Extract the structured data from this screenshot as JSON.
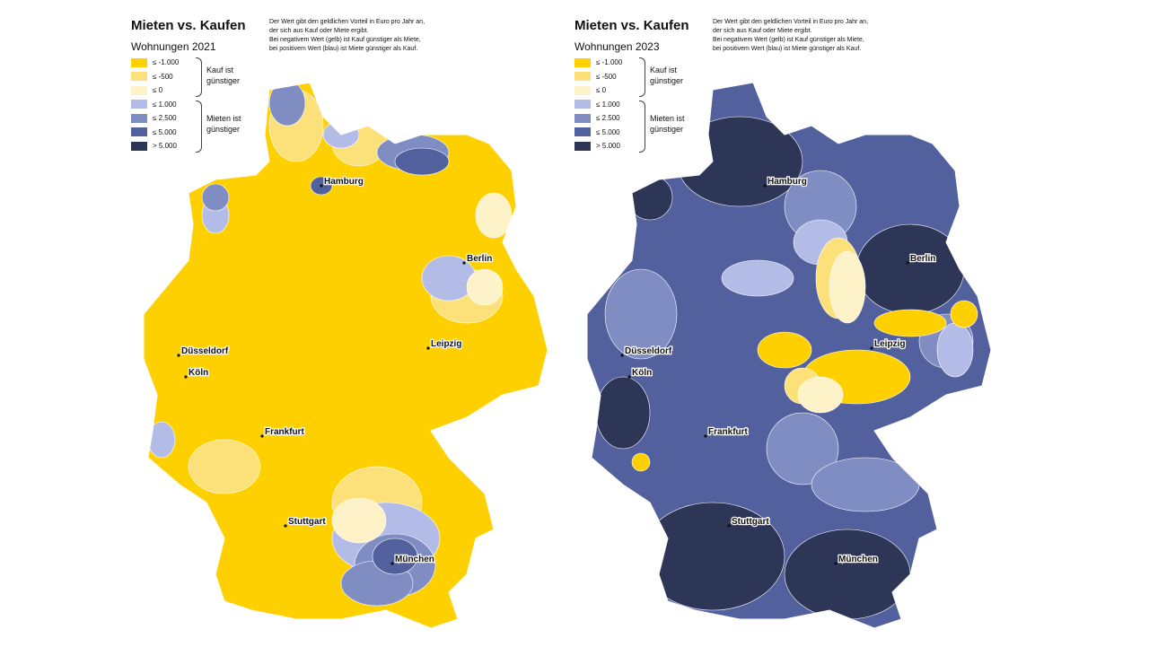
{
  "colors": {
    "y1": "#FFD000",
    "y2": "#FCE17A",
    "y3": "#FEF3C8",
    "b1": "#B3BCE6",
    "b2": "#7F8DC2",
    "b3": "#53609E",
    "b4": "#2E3658"
  },
  "maps": [
    {
      "title": "Mieten vs. Kaufen",
      "subtitle": "Wohnungen 2021"
    },
    {
      "title": "Mieten vs. Kaufen",
      "subtitle": "Wohnungen 2023"
    }
  ],
  "description": [
    "Der Wert gibt den geldlichen Vorteil in Euro pro Jahr an,",
    "der sich aus Kauf oder Miete ergibt.",
    "Bei negativem Wert (gelb) ist Kauf günstiger als Miete,",
    "bei positivem Wert (blau) ist Miete günstiger als Kauf."
  ],
  "legend": {
    "items": [
      "≤ -1.000",
      "≤ -500",
      "≤ 0",
      "≤ 1.000",
      "≤ 2.500",
      "≤ 5.000",
      "> 5.000"
    ],
    "group_buy": "Kauf ist günstiger",
    "group_rent": "Mieten ist günstiger"
  },
  "cities": [
    "Hamburg",
    "Berlin",
    "Düsseldorf",
    "Köln",
    "Leipzig",
    "Frankfurt",
    "Stuttgart",
    "München"
  ]
}
